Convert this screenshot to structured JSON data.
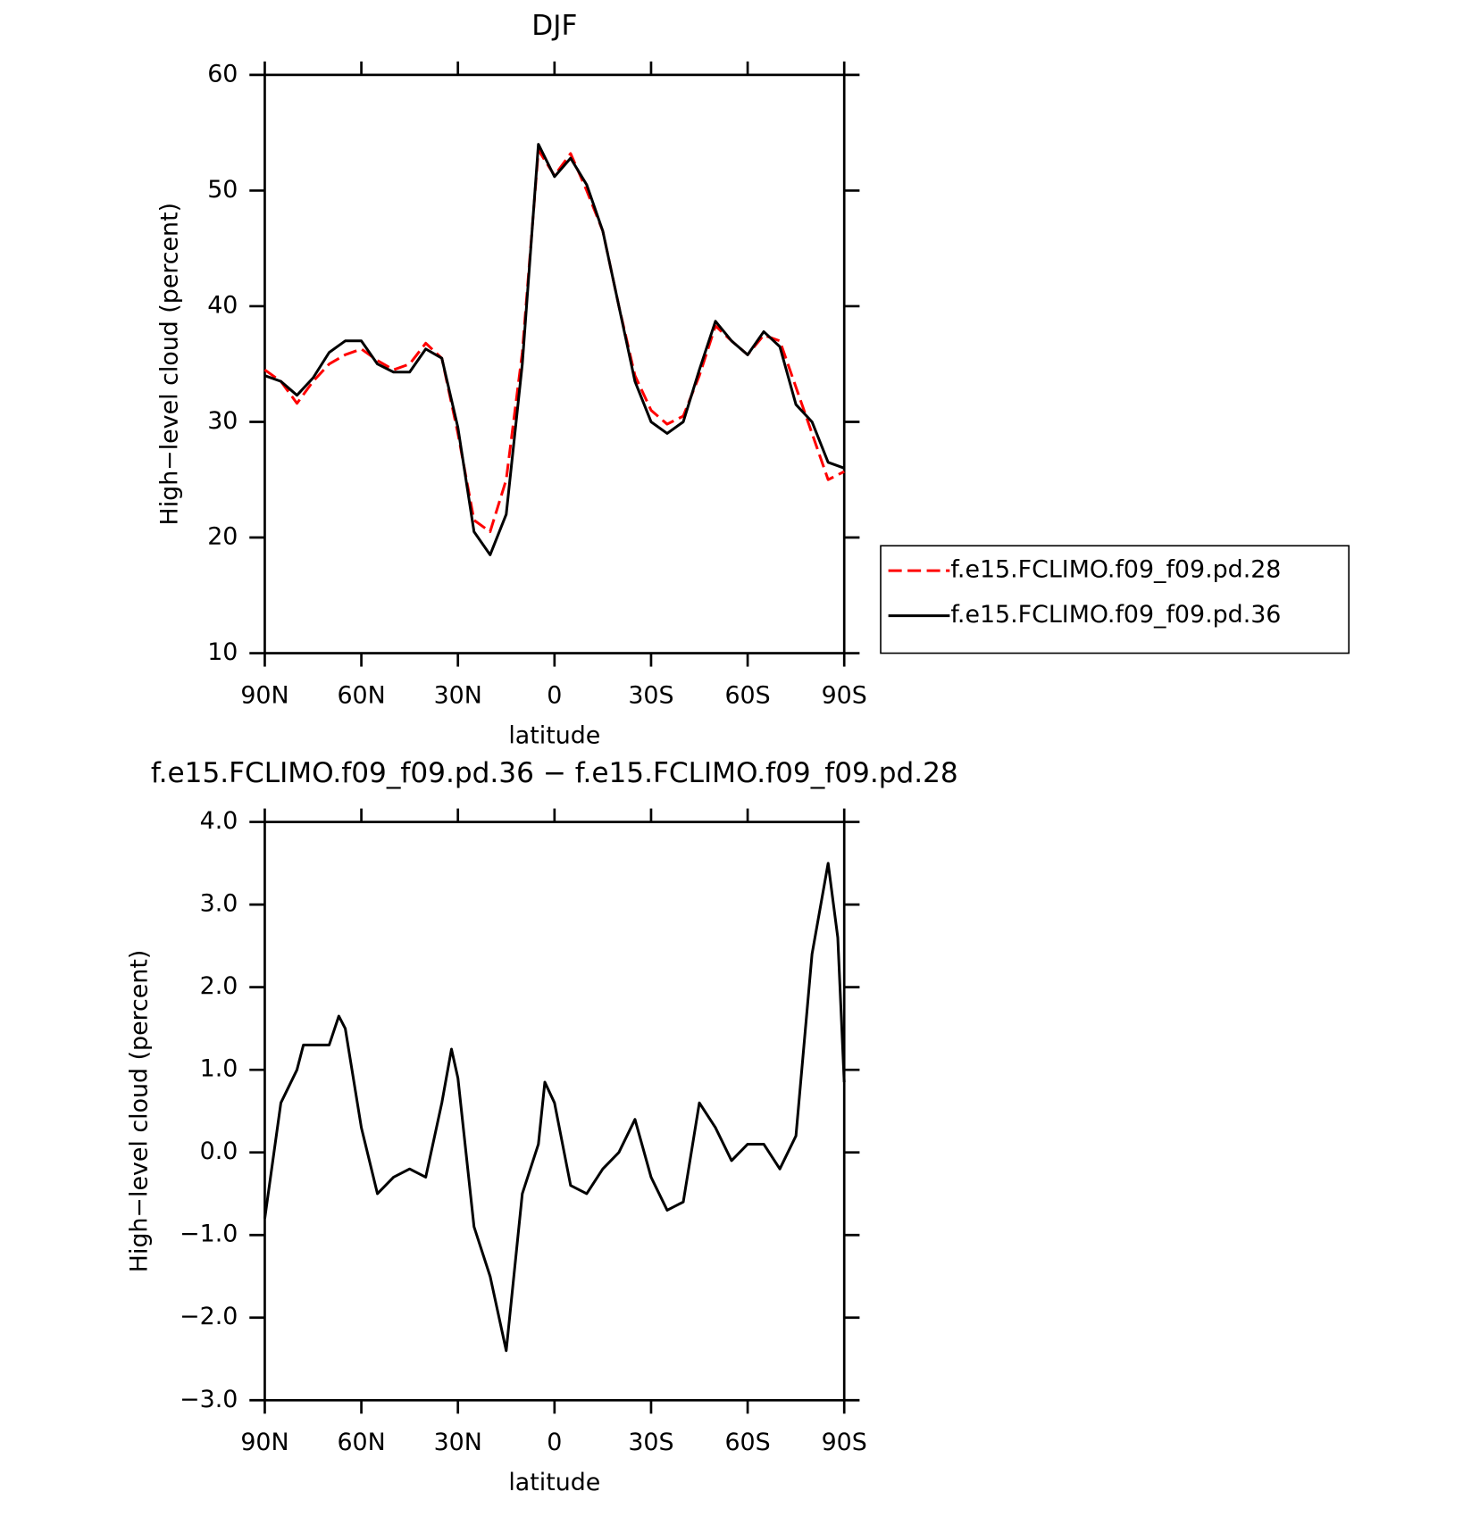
{
  "chart_data": [
    {
      "type": "line",
      "title": "DJF",
      "xlabel": "latitude",
      "ylabel": "High−level cloud (percent)",
      "x": [
        90,
        85,
        80,
        75,
        70,
        65,
        60,
        55,
        50,
        45,
        40,
        35,
        30,
        25,
        20,
        15,
        10,
        5,
        0,
        -5,
        -10,
        -15,
        -20,
        -25,
        -30,
        -35,
        -40,
        -45,
        -50,
        -55,
        -60,
        -65,
        -70,
        -75,
        -80,
        -85,
        -90
      ],
      "series": [
        {
          "name": "f.e15.FCLIMO.f09_f09.pd.28",
          "color": "#ff0000",
          "dash": true,
          "values": [
            34.5,
            33.5,
            31.6,
            33.5,
            35,
            35.8,
            36.3,
            35.3,
            34.5,
            35,
            36.8,
            35.5,
            29,
            21.5,
            20.5,
            25,
            36,
            53.5,
            51.3,
            53.2,
            50,
            46.5,
            40,
            34,
            31,
            29.8,
            30.5,
            34,
            38.3,
            37,
            35.8,
            37.5,
            37,
            33,
            29,
            25,
            25.7
          ]
        },
        {
          "name": "f.e15.FCLIMO.f09_f09.pd.36",
          "color": "#000000",
          "dash": false,
          "values": [
            34,
            33.5,
            32.3,
            33.8,
            36,
            37,
            37,
            35,
            34.3,
            34.3,
            36.3,
            35.5,
            29.5,
            20.5,
            18.5,
            22,
            35,
            54,
            51.2,
            52.8,
            50.5,
            46.5,
            40,
            33.5,
            30,
            29,
            30,
            34.5,
            38.7,
            37,
            35.8,
            37.8,
            36.5,
            31.5,
            30,
            26.5,
            26
          ]
        }
      ],
      "xlim": [
        90,
        -90
      ],
      "xticks": [
        {
          "value": 90,
          "label": "90N"
        },
        {
          "value": 60,
          "label": "60N"
        },
        {
          "value": 30,
          "label": "30N"
        },
        0,
        {
          "value": -30,
          "label": "30S"
        },
        {
          "value": -60,
          "label": "60S"
        },
        {
          "value": -90,
          "label": "90S"
        }
      ],
      "ylim": [
        10,
        60
      ],
      "yticks": [
        10,
        20,
        30,
        40,
        50,
        60
      ],
      "legend": "right"
    },
    {
      "type": "line",
      "title": "f.e15.FCLIMO.f09_f09.pd.36 − f.e15.FCLIMO.f09_f09.pd.28",
      "xlabel": "latitude",
      "ylabel": "High−level cloud (percent)",
      "x": [
        90,
        85,
        80,
        78,
        75,
        70,
        67,
        65,
        60,
        55,
        50,
        45,
        40,
        35,
        32,
        30,
        25,
        20,
        15,
        10,
        5,
        3,
        0,
        -5,
        -10,
        -15,
        -20,
        -25,
        -30,
        -35,
        -40,
        -45,
        -50,
        -55,
        -60,
        -65,
        -70,
        -75,
        -80,
        -85,
        -88,
        -90
      ],
      "series": [
        {
          "name": "diff",
          "color": "#000000",
          "dash": false,
          "values": [
            -0.8,
            0.6,
            1.0,
            1.3,
            1.3,
            1.3,
            1.65,
            1.5,
            0.3,
            -0.5,
            -0.3,
            -0.2,
            -0.3,
            0.6,
            1.25,
            0.9,
            -0.9,
            -1.5,
            -2.4,
            -0.5,
            0.1,
            0.85,
            0.6,
            -0.4,
            -0.5,
            -0.2,
            0,
            0.4,
            -0.3,
            -0.7,
            -0.6,
            0.6,
            0.3,
            -0.1,
            0.1,
            0.1,
            -0.2,
            0.2,
            2.4,
            3.5,
            2.6,
            0.85
          ]
        }
      ],
      "xlim": [
        90,
        -90
      ],
      "xticks": [
        {
          "value": 90,
          "label": "90N"
        },
        {
          "value": 60,
          "label": "60N"
        },
        {
          "value": 30,
          "label": "30N"
        },
        0,
        {
          "value": -30,
          "label": "30S"
        },
        {
          "value": -60,
          "label": "60S"
        },
        {
          "value": -90,
          "label": "90S"
        }
      ],
      "ylim": [
        -3,
        4
      ],
      "yticks": [
        {
          "value": -3,
          "label": "−3.0"
        },
        {
          "value": -2,
          "label": "−2.0"
        },
        {
          "value": -1,
          "label": "−1.0"
        },
        {
          "value": 0,
          "label": "0.0"
        },
        {
          "value": 1,
          "label": "1.0"
        },
        {
          "value": 2,
          "label": "2.0"
        },
        {
          "value": 3,
          "label": "3.0"
        },
        {
          "value": 4,
          "label": "4.0"
        }
      ]
    }
  ]
}
